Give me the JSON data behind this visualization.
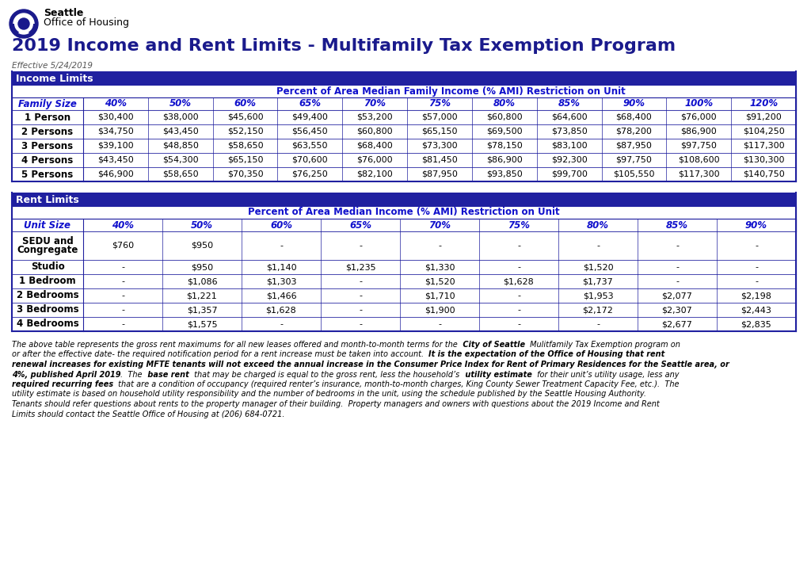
{
  "title": "2019 Income and Rent Limits - Multifamily Tax Exemption Program",
  "effective_date": "Effective 5/24/2019",
  "logo_text1": "Seattle",
  "logo_text2": "Office of Housing",
  "header_bg": "#2020A0",
  "header_text_color": "#FFFFFF",
  "col_header_text_color": "#1010CC",
  "border_color": "#2020A0",
  "income_section_label": "Income Limits",
  "income_subheader": "Percent of Area Median Family Income (% AMI) Restriction on Unit",
  "income_col1_label": "Family Size",
  "income_col_headers": [
    "40%",
    "50%",
    "60%",
    "65%",
    "70%",
    "75%",
    "80%",
    "85%",
    "90%",
    "100%",
    "120%"
  ],
  "income_row_labels": [
    "1 Person",
    "2 Persons",
    "3 Persons",
    "4 Persons",
    "5 Persons"
  ],
  "income_data": [
    [
      "$30,400",
      "$38,000",
      "$45,600",
      "$49,400",
      "$53,200",
      "$57,000",
      "$60,800",
      "$64,600",
      "$68,400",
      "$76,000",
      "$91,200"
    ],
    [
      "$34,750",
      "$43,450",
      "$52,150",
      "$56,450",
      "$60,800",
      "$65,150",
      "$69,500",
      "$73,850",
      "$78,200",
      "$86,900",
      "$104,250"
    ],
    [
      "$39,100",
      "$48,850",
      "$58,650",
      "$63,550",
      "$68,400",
      "$73,300",
      "$78,150",
      "$83,100",
      "$87,950",
      "$97,750",
      "$117,300"
    ],
    [
      "$43,450",
      "$54,300",
      "$65,150",
      "$70,600",
      "$76,000",
      "$81,450",
      "$86,900",
      "$92,300",
      "$97,750",
      "$108,600",
      "$130,300"
    ],
    [
      "$46,900",
      "$58,650",
      "$70,350",
      "$76,250",
      "$82,100",
      "$87,950",
      "$93,850",
      "$99,700",
      "$105,550",
      "$117,300",
      "$140,750"
    ]
  ],
  "rent_section_label": "Rent Limits",
  "rent_subheader": "Percent of Area Median Income (% AMI) Restriction on Unit",
  "rent_col1_label": "Unit Size",
  "rent_col_headers": [
    "40%",
    "50%",
    "60%",
    "65%",
    "70%",
    "75%",
    "80%",
    "85%",
    "90%"
  ],
  "rent_row_labels": [
    "SEDU and\nCongregate",
    "Studio",
    "1 Bedroom",
    "2 Bedrooms",
    "3 Bedrooms",
    "4 Bedrooms"
  ],
  "rent_data": [
    [
      "$760",
      "$950",
      "-",
      "-",
      "-",
      "-",
      "-",
      "-",
      "-"
    ],
    [
      "-",
      "$950",
      "$1,140",
      "$1,235",
      "$1,330",
      "-",
      "$1,520",
      "-",
      "-"
    ],
    [
      "-",
      "$1,086",
      "$1,303",
      "-",
      "$1,520",
      "$1,628",
      "$1,737",
      "-",
      "-"
    ],
    [
      "-",
      "$1,221",
      "$1,466",
      "-",
      "$1,710",
      "-",
      "$1,953",
      "$2,077",
      "$2,198"
    ],
    [
      "-",
      "$1,357",
      "$1,628",
      "-",
      "$1,900",
      "-",
      "$2,172",
      "$2,307",
      "$2,443"
    ],
    [
      "-",
      "$1,575",
      "-",
      "-",
      "-",
      "-",
      "-",
      "$2,677",
      "$2,835"
    ]
  ],
  "footnote_parts": [
    [
      {
        "text": "The above table represents the gross rent maximums for all new leases offered and month-to-month terms for the ",
        "weight": "normal",
        "style": "italic"
      },
      {
        "text": " City of Seattle ",
        "weight": "bold",
        "style": "italic"
      },
      {
        "text": " Mulitfamily Tax Exemption program on",
        "weight": "normal",
        "style": "italic"
      }
    ],
    [
      {
        "text": "or after the effective date- the required notification period for a rent increase must be taken into account.  ",
        "weight": "normal",
        "style": "italic"
      },
      {
        "text": "It is the expectation of the Office of Housing that rent",
        "weight": "bold",
        "style": "italic"
      }
    ],
    [
      {
        "text": "renewal increases for existing MFTE tenants will not exceed the annual increase in the Consumer Price Index for Rent of Primary Residences for the Seattle area, or",
        "weight": "bold",
        "style": "italic"
      }
    ],
    [
      {
        "text": "4%, published April 2019",
        "weight": "bold",
        "style": "italic"
      },
      {
        "text": ".  The ",
        "weight": "normal",
        "style": "italic"
      },
      {
        "text": " base rent ",
        "weight": "bold",
        "style": "italic"
      },
      {
        "text": " that may be charged is equal to the gross rent, less the household’s ",
        "weight": "normal",
        "style": "italic"
      },
      {
        "text": " utility estimate ",
        "weight": "bold",
        "style": "italic"
      },
      {
        "text": " for their unit’s utility usage, less any",
        "weight": "normal",
        "style": "italic"
      }
    ],
    [
      {
        "text": "required recurring fees ",
        "weight": "bold",
        "style": "italic"
      },
      {
        "text": " that are a condition of occupancy (required renter’s insurance, month-to-month charges, King County Sewer Treatment Capacity Fee, etc.).  The",
        "weight": "normal",
        "style": "italic"
      }
    ],
    [
      {
        "text": "utility estimate is based on household utility responsibility and the number of bedrooms in the unit, using the schedule published by the Seattle Housing Authority.",
        "weight": "normal",
        "style": "italic"
      }
    ],
    [
      {
        "text": "Tenants should refer questions about rents to the property manager of their building.  Property managers and owners with questions about the 2019 Income and Rent",
        "weight": "normal",
        "style": "italic"
      }
    ],
    [
      {
        "text": "Limits should contact the Seattle Office of Housing at (206) 684-0721.",
        "weight": "normal",
        "style": "italic"
      }
    ]
  ]
}
